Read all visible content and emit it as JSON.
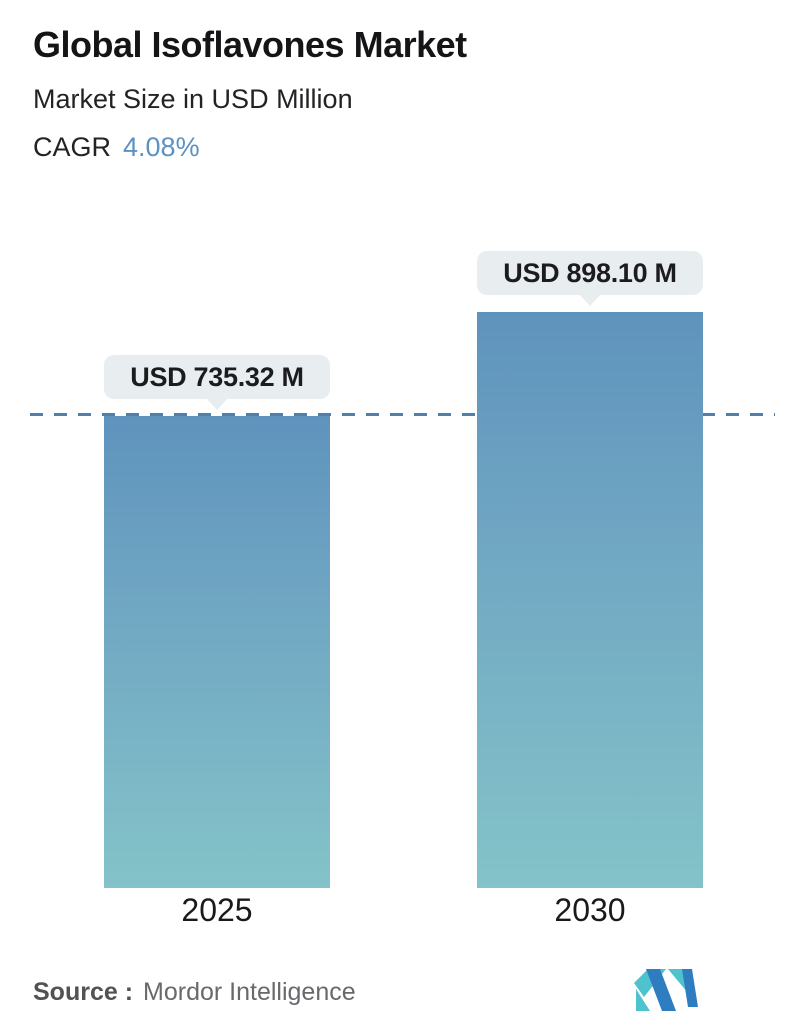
{
  "header": {
    "title": "Global Isoflavones Market",
    "subtitle": "Market Size in USD Million",
    "cagr_label": "CAGR",
    "cagr_value": "4.08%"
  },
  "chart_data": {
    "type": "bar",
    "categories": [
      "2025",
      "2030"
    ],
    "values": [
      735.32,
      898.1
    ],
    "value_labels": [
      "USD 735.32 M",
      "USD 898.10 M"
    ],
    "title": "Global Isoflavones Market",
    "subtitle": "Market Size in USD Million",
    "cagr": "4.08%",
    "unit": "USD Million",
    "ylim": [
      0,
      898.1
    ],
    "grid": "off",
    "legend": "none",
    "reference_line": {
      "at_value": 735.32,
      "style": "dashed",
      "color": "#4d81ad"
    },
    "bar_gradient_top": "#5f93bd",
    "bar_gradient_bottom": "#84c3c9",
    "label_bubble_bg": "#e8eef0"
  },
  "footer": {
    "source_label": "Source :",
    "source_value": "Mordor Intelligence",
    "logo": "mordor-intelligence-logo"
  },
  "colors": {
    "accent_blue": "#5b91c3",
    "dashed_line": "#4d81ad",
    "text_dark": "#1c1c1e"
  }
}
